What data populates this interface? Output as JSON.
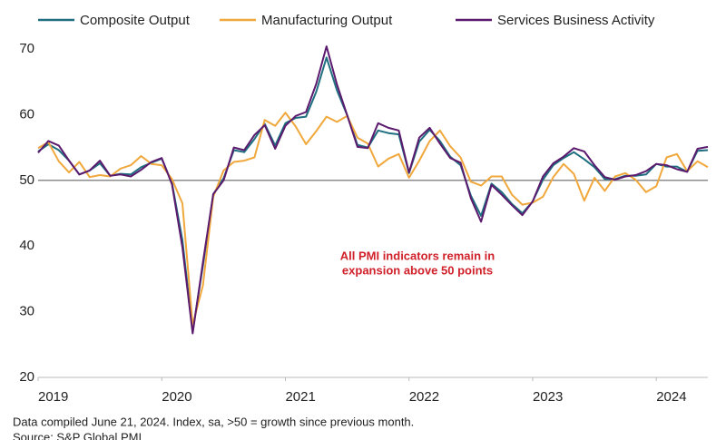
{
  "chart_data": {
    "type": "line",
    "annotation": [
      "All PMI indicators remain in",
      "expansion above 50 points"
    ],
    "footnote": "Data compiled June 21, 2024. Index,  sa, >50 = growth since previous month.",
    "source": "Source: S&P Global PMI.",
    "x": [
      2019,
      2019.083,
      2019.167,
      2019.25,
      2019.333,
      2019.417,
      2019.5,
      2019.583,
      2019.667,
      2019.75,
      2019.833,
      2019.917,
      2020,
      2020.083,
      2020.167,
      2020.25,
      2020.333,
      2020.417,
      2020.5,
      2020.583,
      2020.667,
      2020.75,
      2020.833,
      2020.917,
      2021,
      2021.083,
      2021.167,
      2021.25,
      2021.333,
      2021.417,
      2021.5,
      2021.583,
      2021.667,
      2021.75,
      2021.833,
      2021.917,
      2022,
      2022.083,
      2022.167,
      2022.25,
      2022.333,
      2022.417,
      2022.5,
      2022.583,
      2022.667,
      2022.75,
      2022.833,
      2022.917,
      2023,
      2023.083,
      2023.167,
      2023.25,
      2023.333,
      2023.417,
      2023.5,
      2023.583,
      2023.667,
      2023.75,
      2023.833,
      2023.917,
      2024,
      2024.083,
      2024.167,
      2024.25,
      2024.333,
      2024.417
    ],
    "series": [
      {
        "name": "Composite Output",
        "color": "#1f6f80",
        "values": [
          54.4,
          55.5,
          54.6,
          53,
          50.9,
          51.5,
          52.6,
          50.7,
          51,
          50.9,
          52,
          52.7,
          53.3,
          49.6,
          40.9,
          27,
          37,
          47.9,
          50.3,
          54.6,
          54.3,
          56.3,
          58.6,
          55.3,
          58.7,
          59.5,
          59.7,
          63.5,
          68.7,
          63.7,
          59.9,
          55.4,
          55,
          57.6,
          57.2,
          57,
          51.1,
          55.9,
          57.7,
          56,
          53.6,
          52.3,
          47.7,
          44.6,
          49.5,
          48.2,
          46.4,
          45,
          46.8,
          50.1,
          52.3,
          53.4,
          54.3,
          53.2,
          52,
          50.2,
          50.2,
          50.7,
          50.7,
          50.9,
          52.5,
          52.1,
          52.1,
          51.3,
          54.5,
          54.6
        ]
      },
      {
        "name": "Manufacturing Output",
        "color": "#f0a83c",
        "values": [
          54.9,
          55.8,
          52.9,
          51.2,
          52.8,
          50.5,
          50.8,
          50.6,
          51.8,
          52.3,
          53.7,
          52.5,
          52.3,
          50.2,
          46.5,
          28,
          34,
          47.5,
          51.5,
          52.8,
          53,
          53.5,
          59.2,
          58.3,
          60.3,
          58.2,
          55.5,
          57.5,
          59.7,
          58.9,
          59.8,
          56.5,
          55.6,
          52.1,
          53.3,
          54,
          50.4,
          53,
          56,
          57.6,
          55.2,
          53.5,
          49.8,
          49.2,
          50.6,
          50.6,
          47.8,
          46.3,
          46.6,
          47.5,
          50.5,
          52.5,
          51,
          46.9,
          50.4,
          48.4,
          50.6,
          51.1,
          50.1,
          48.2,
          49.1,
          53.5,
          54,
          51.4,
          52.9,
          52
        ]
      },
      {
        "name": "Services Business Activity",
        "color": "#5b1a6e",
        "values": [
          54.2,
          56,
          55.3,
          53,
          50.9,
          51.5,
          53,
          50.7,
          50.9,
          50.6,
          51.6,
          52.8,
          53.4,
          49.4,
          39.8,
          26.7,
          37.5,
          47.9,
          50,
          55,
          54.6,
          56.9,
          58.4,
          54.8,
          58.3,
          59.8,
          60.4,
          64.7,
          70.4,
          64.6,
          59.9,
          55.1,
          54.9,
          58.7,
          58,
          57.6,
          51.2,
          56.5,
          58,
          55.6,
          53.4,
          52.7,
          47.3,
          43.7,
          49.3,
          47.8,
          46.2,
          44.7,
          46.8,
          50.6,
          52.6,
          53.6,
          54.9,
          54.4,
          52.3,
          50.5,
          50.1,
          50.6,
          50.8,
          51.4,
          52.5,
          52.3,
          51.7,
          51.3,
          54.8,
          55.1
        ]
      }
    ],
    "xlim": [
      2019,
      2024.417
    ],
    "xticks": [
      2019,
      2020,
      2021,
      2022,
      2023,
      2024
    ],
    "ylim": [
      20,
      70
    ],
    "yticks": [
      20,
      30,
      40,
      50,
      60,
      70
    ],
    "hline": 50
  }
}
